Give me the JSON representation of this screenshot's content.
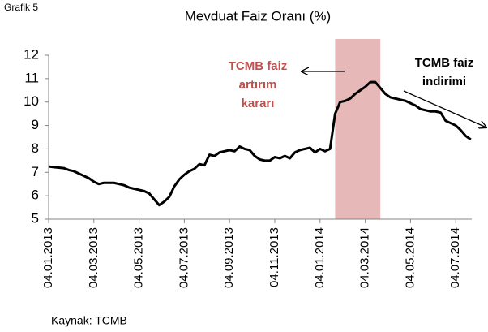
{
  "chart_data": {
    "type": "line",
    "corner_label": "Grafik 5",
    "title": "Mevduat Faiz Oranı (%)",
    "source": "Kaynak: TCMB",
    "categories": [
      "04.01.2013",
      null,
      null,
      null,
      null,
      null,
      null,
      null,
      null,
      "04.03.2013",
      null,
      null,
      null,
      null,
      null,
      null,
      null,
      null,
      "04.05.2013",
      null,
      null,
      null,
      null,
      null,
      null,
      null,
      null,
      "04.07.2013",
      null,
      null,
      null,
      null,
      null,
      null,
      null,
      null,
      "04.09.2013",
      null,
      null,
      null,
      null,
      null,
      null,
      null,
      null,
      "04.11.2013",
      null,
      null,
      null,
      null,
      null,
      null,
      null,
      null,
      "04.01.2014",
      null,
      null,
      null,
      null,
      null,
      null,
      null,
      null,
      "04.03.2014",
      null,
      null,
      null,
      null,
      null,
      null,
      null,
      null,
      "04.05.2014",
      null,
      null,
      null,
      null,
      null,
      null,
      null,
      null,
      "04.07.2014",
      null,
      null,
      null
    ],
    "series": [
      {
        "name": "Mevduat Faiz Oranı",
        "color": "#000000",
        "values": [
          7.25,
          7.22,
          7.2,
          7.18,
          7.1,
          7.05,
          6.95,
          6.85,
          6.75,
          6.6,
          6.5,
          6.55,
          6.55,
          6.55,
          6.5,
          6.45,
          6.35,
          6.3,
          6.25,
          6.2,
          6.1,
          5.85,
          5.6,
          5.75,
          5.95,
          6.4,
          6.7,
          6.9,
          7.05,
          7.15,
          7.35,
          7.3,
          7.75,
          7.7,
          7.85,
          7.9,
          7.95,
          7.9,
          8.1,
          8.0,
          7.95,
          7.7,
          7.55,
          7.5,
          7.5,
          7.65,
          7.6,
          7.7,
          7.6,
          7.85,
          7.95,
          8.0,
          8.05,
          7.85,
          8.0,
          7.9,
          8.0,
          9.5,
          10.0,
          10.05,
          10.15,
          10.35,
          10.5,
          10.65,
          10.85,
          10.85,
          10.6,
          10.35,
          10.2,
          10.15,
          10.1,
          10.05,
          9.95,
          9.85,
          9.7,
          9.65,
          9.6,
          9.6,
          9.55,
          9.2,
          9.1,
          9.0,
          8.8,
          8.55,
          8.4
        ]
      }
    ],
    "ylim": [
      5,
      12
    ],
    "yticks": [
      5,
      6,
      7,
      8,
      9,
      10,
      11,
      12
    ],
    "grid": false,
    "highlight": {
      "range": [
        57,
        66
      ],
      "color": "#e6b9b8"
    },
    "annotations": [
      {
        "text": [
          "TCMB faiz",
          "artırım",
          "kararı"
        ],
        "color": "#c0504d"
      },
      {
        "text": [
          "TCMB faiz",
          "indirimi"
        ],
        "color": "#000000"
      }
    ]
  }
}
